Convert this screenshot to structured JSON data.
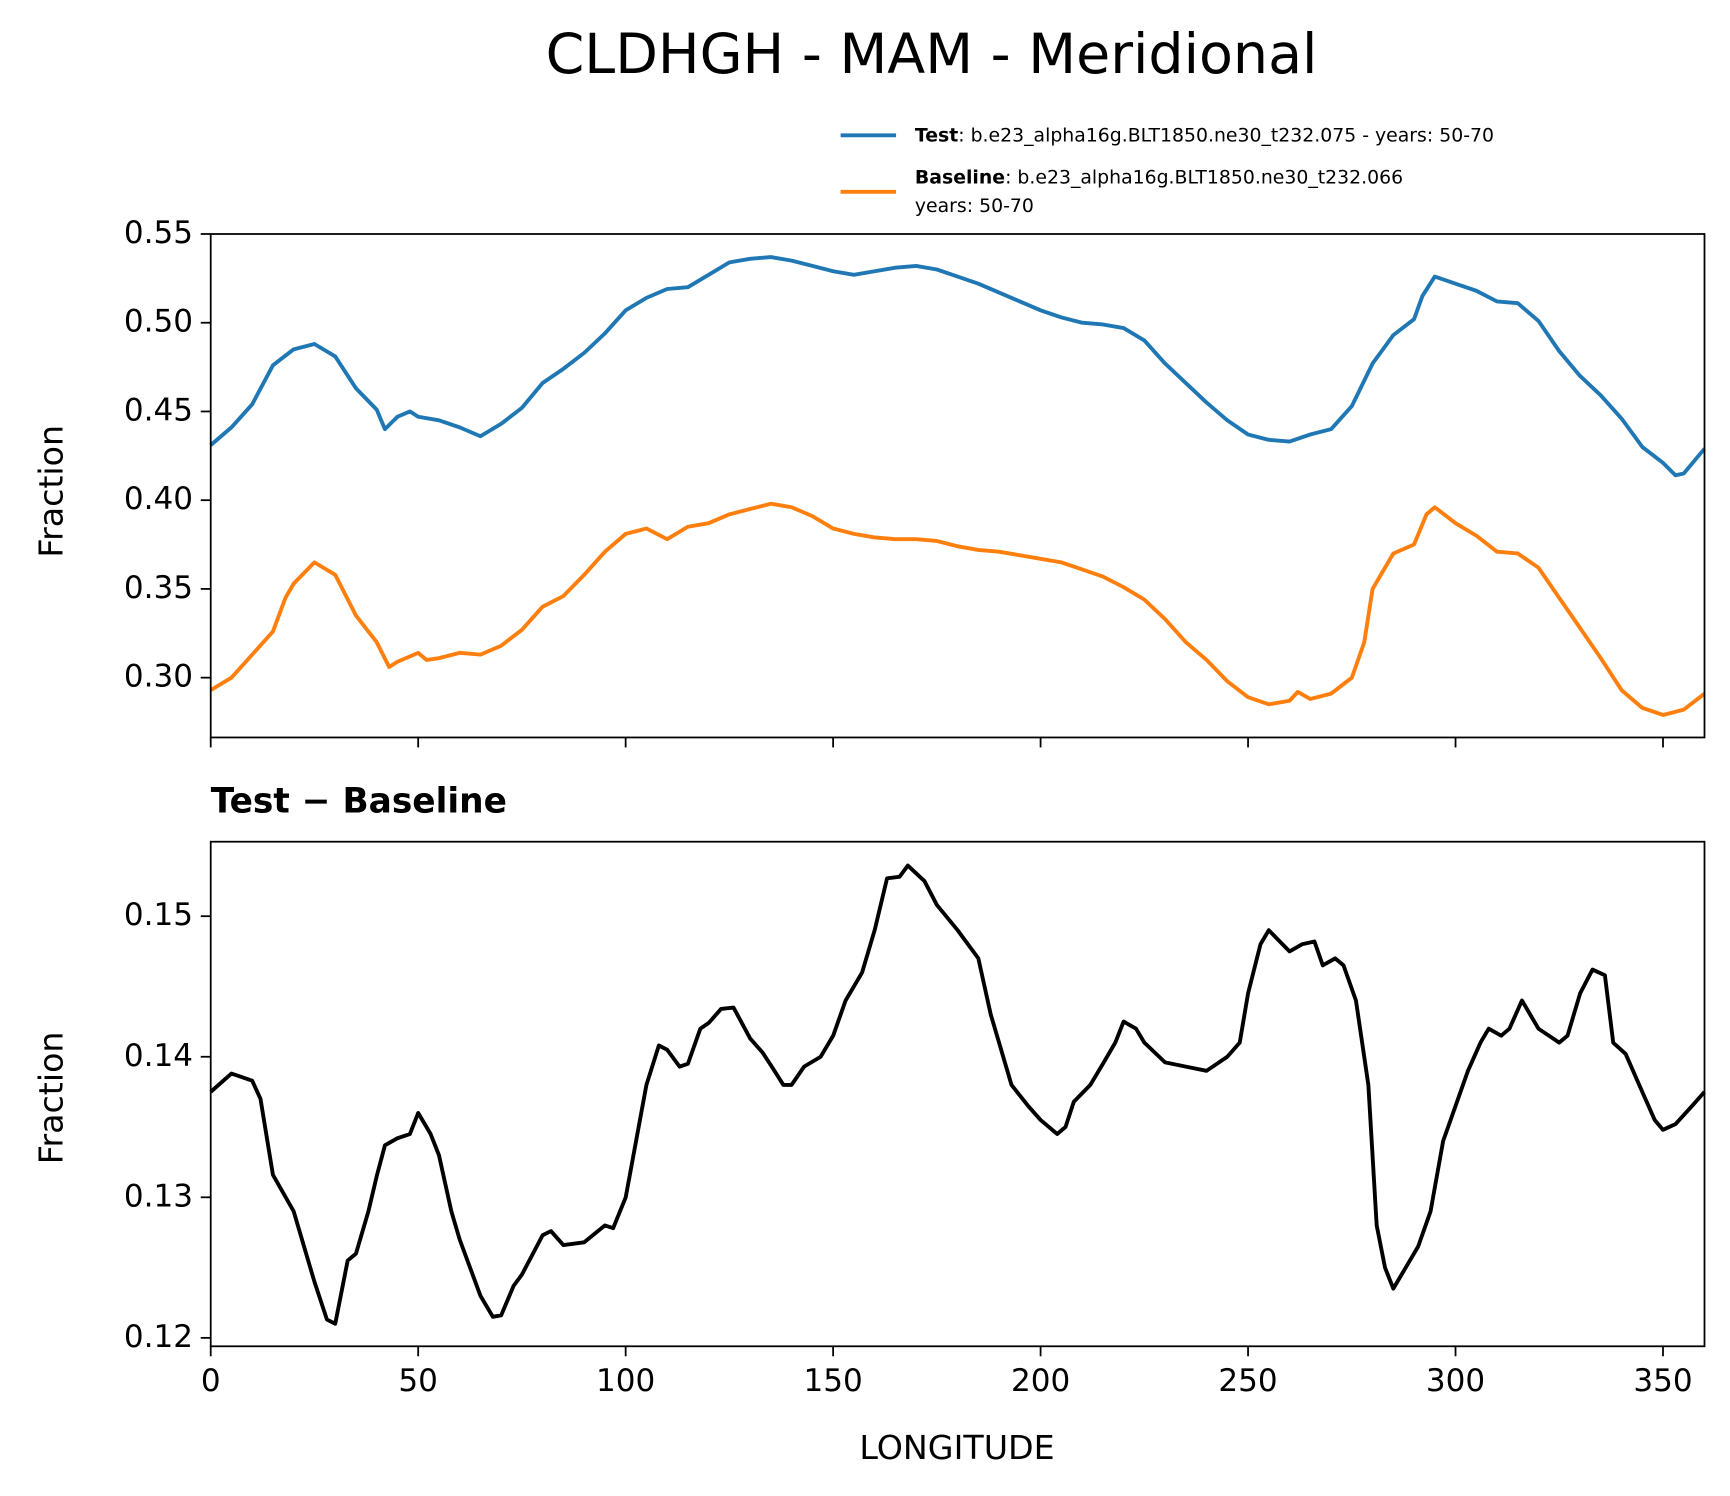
{
  "chart_data": [
    {
      "type": "line",
      "title": "CLDHGH - MAM - Meridional",
      "ylabel": "Fraction",
      "xlim": [
        0,
        360
      ],
      "xticks": [
        0,
        50,
        100,
        150,
        200,
        250,
        300,
        350
      ],
      "ylim": [
        0.2663,
        0.55
      ],
      "yticks": [
        {
          "value": 0.3,
          "label": "0.30"
        },
        0.35,
        {
          "value": 0.4,
          "label": "0.40"
        },
        0.45,
        {
          "value": 0.5,
          "label": "0.50"
        },
        0.55
      ],
      "legend": "upper right",
      "series": [
        {
          "name": "Test",
          "description": [
            ": b.e23_alpha16g.BLT1850.ne30_t232.075 - years: 50-70"
          ],
          "color": "#1f77b4",
          "x": [
            0,
            5,
            10,
            15,
            20,
            25,
            30,
            35,
            40,
            42,
            45,
            48,
            50,
            55,
            60,
            65,
            70,
            75,
            80,
            85,
            90,
            95,
            100,
            105,
            110,
            115,
            120,
            125,
            130,
            135,
            140,
            145,
            150,
            155,
            160,
            165,
            170,
            175,
            180,
            185,
            190,
            195,
            200,
            205,
            210,
            215,
            220,
            225,
            230,
            235,
            240,
            245,
            250,
            255,
            260,
            265,
            270,
            275,
            280,
            285,
            290,
            292,
            295,
            300,
            305,
            310,
            315,
            320,
            325,
            330,
            335,
            340,
            345,
            350,
            353,
            355,
            360
          ],
          "values": [
            0.431,
            0.441,
            0.454,
            0.476,
            0.485,
            0.488,
            0.481,
            0.463,
            0.451,
            0.44,
            0.447,
            0.45,
            0.447,
            0.445,
            0.441,
            0.436,
            0.443,
            0.452,
            0.466,
            0.474,
            0.483,
            0.494,
            0.507,
            0.514,
            0.519,
            0.52,
            0.527,
            0.534,
            0.536,
            0.537,
            0.535,
            0.532,
            0.529,
            0.527,
            0.529,
            0.531,
            0.532,
            0.53,
            0.526,
            0.522,
            0.517,
            0.512,
            0.507,
            0.503,
            0.5,
            0.499,
            0.497,
            0.49,
            0.477,
            0.466,
            0.455,
            0.445,
            0.437,
            0.434,
            0.433,
            0.437,
            0.44,
            0.453,
            0.477,
            0.493,
            0.502,
            0.515,
            0.526,
            0.522,
            0.518,
            0.512,
            0.511,
            0.501,
            0.484,
            0.47,
            0.459,
            0.446,
            0.43,
            0.421,
            0.414,
            0.415,
            0.429
          ]
        },
        {
          "name": "Baseline",
          "description": [
            ": b.e23_alpha16g.BLT1850.ne30_t232.066",
            "years: 50-70"
          ],
          "color": "#ff7f0e",
          "x": [
            0,
            5,
            10,
            15,
            18,
            20,
            25,
            30,
            35,
            40,
            43,
            45,
            50,
            52,
            55,
            60,
            65,
            70,
            75,
            80,
            85,
            90,
            95,
            100,
            105,
            110,
            115,
            120,
            125,
            130,
            135,
            140,
            145,
            150,
            155,
            160,
            165,
            170,
            175,
            180,
            185,
            190,
            195,
            200,
            205,
            210,
            215,
            220,
            225,
            230,
            235,
            240,
            245,
            250,
            255,
            260,
            262,
            265,
            270,
            275,
            278,
            280,
            285,
            290,
            293,
            295,
            300,
            305,
            310,
            315,
            320,
            325,
            330,
            335,
            340,
            345,
            350,
            355,
            360
          ],
          "values": [
            0.293,
            0.3,
            0.313,
            0.326,
            0.345,
            0.353,
            0.365,
            0.358,
            0.335,
            0.32,
            0.306,
            0.309,
            0.314,
            0.31,
            0.311,
            0.314,
            0.313,
            0.318,
            0.327,
            0.34,
            0.346,
            0.358,
            0.371,
            0.381,
            0.384,
            0.378,
            0.385,
            0.387,
            0.392,
            0.395,
            0.398,
            0.396,
            0.391,
            0.384,
            0.381,
            0.379,
            0.378,
            0.378,
            0.377,
            0.374,
            0.372,
            0.371,
            0.369,
            0.367,
            0.365,
            0.361,
            0.357,
            0.351,
            0.344,
            0.333,
            0.32,
            0.31,
            0.298,
            0.289,
            0.285,
            0.287,
            0.292,
            0.288,
            0.291,
            0.3,
            0.32,
            0.35,
            0.37,
            0.375,
            0.392,
            0.396,
            0.387,
            0.38,
            0.371,
            0.37,
            0.362,
            0.345,
            0.328,
            0.311,
            0.293,
            0.283,
            0.279,
            0.282,
            0.291
          ]
        }
      ]
    },
    {
      "type": "line",
      "title": "Test − Baseline",
      "xlabel": "LONGITUDE",
      "ylabel": "Fraction",
      "xlim": [
        0,
        360
      ],
      "xticks": [
        0,
        50,
        100,
        150,
        200,
        250,
        300,
        350
      ],
      "ylim": [
        0.1194,
        0.1553
      ],
      "yticks": [
        0.12,
        0.13,
        0.14,
        0.15
      ],
      "series": [
        {
          "color": "#000000",
          "x": [
            0,
            5,
            10,
            12,
            15,
            20,
            25,
            28,
            30,
            33,
            35,
            38,
            40,
            42,
            45,
            48,
            50,
            53,
            55,
            58,
            60,
            65,
            68,
            70,
            73,
            75,
            80,
            82,
            85,
            90,
            95,
            97,
            100,
            105,
            108,
            110,
            113,
            115,
            118,
            120,
            123,
            126,
            130,
            133,
            135,
            138,
            140,
            143,
            147,
            150,
            153,
            157,
            160,
            163,
            166,
            168,
            172,
            175,
            180,
            185,
            188,
            190,
            193,
            197,
            200,
            204,
            206,
            208,
            212,
            215,
            218,
            220,
            223,
            225,
            230,
            235,
            240,
            245,
            248,
            250,
            253,
            255,
            260,
            263,
            266,
            268,
            271,
            273,
            276,
            279,
            281,
            283,
            285,
            288,
            291,
            294,
            297,
            300,
            303,
            306,
            308,
            311,
            313,
            316,
            320,
            325,
            327,
            330,
            333,
            336,
            338,
            341,
            345,
            348,
            350,
            353,
            357,
            360
          ],
          "values": [
            0.1375,
            0.1388,
            0.1383,
            0.137,
            0.1316,
            0.129,
            0.124,
            0.1213,
            0.121,
            0.1255,
            0.126,
            0.129,
            0.1315,
            0.1337,
            0.1342,
            0.1345,
            0.136,
            0.1345,
            0.133,
            0.129,
            0.127,
            0.123,
            0.1215,
            0.1216,
            0.1237,
            0.1245,
            0.1273,
            0.1276,
            0.1266,
            0.1268,
            0.128,
            0.1278,
            0.13,
            0.138,
            0.1408,
            0.1405,
            0.1393,
            0.1395,
            0.142,
            0.1424,
            0.1434,
            0.1435,
            0.1413,
            0.1403,
            0.1394,
            0.138,
            0.138,
            0.1393,
            0.14,
            0.1415,
            0.144,
            0.146,
            0.149,
            0.1527,
            0.1528,
            0.1536,
            0.1525,
            0.1508,
            0.149,
            0.147,
            0.143,
            0.141,
            0.138,
            0.1365,
            0.1355,
            0.1345,
            0.135,
            0.1368,
            0.138,
            0.1395,
            0.141,
            0.1425,
            0.142,
            0.141,
            0.1396,
            0.1393,
            0.139,
            0.14,
            0.141,
            0.1445,
            0.148,
            0.149,
            0.1475,
            0.148,
            0.1482,
            0.1465,
            0.147,
            0.1465,
            0.144,
            0.138,
            0.128,
            0.125,
            0.1235,
            0.125,
            0.1265,
            0.129,
            0.134,
            0.1365,
            0.139,
            0.141,
            0.142,
            0.1415,
            0.142,
            0.144,
            0.142,
            0.141,
            0.1415,
            0.1445,
            0.1462,
            0.1458,
            0.141,
            0.1402,
            0.1375,
            0.1355,
            0.1348,
            0.1352,
            0.1365,
            0.1375
          ]
        }
      ]
    }
  ]
}
